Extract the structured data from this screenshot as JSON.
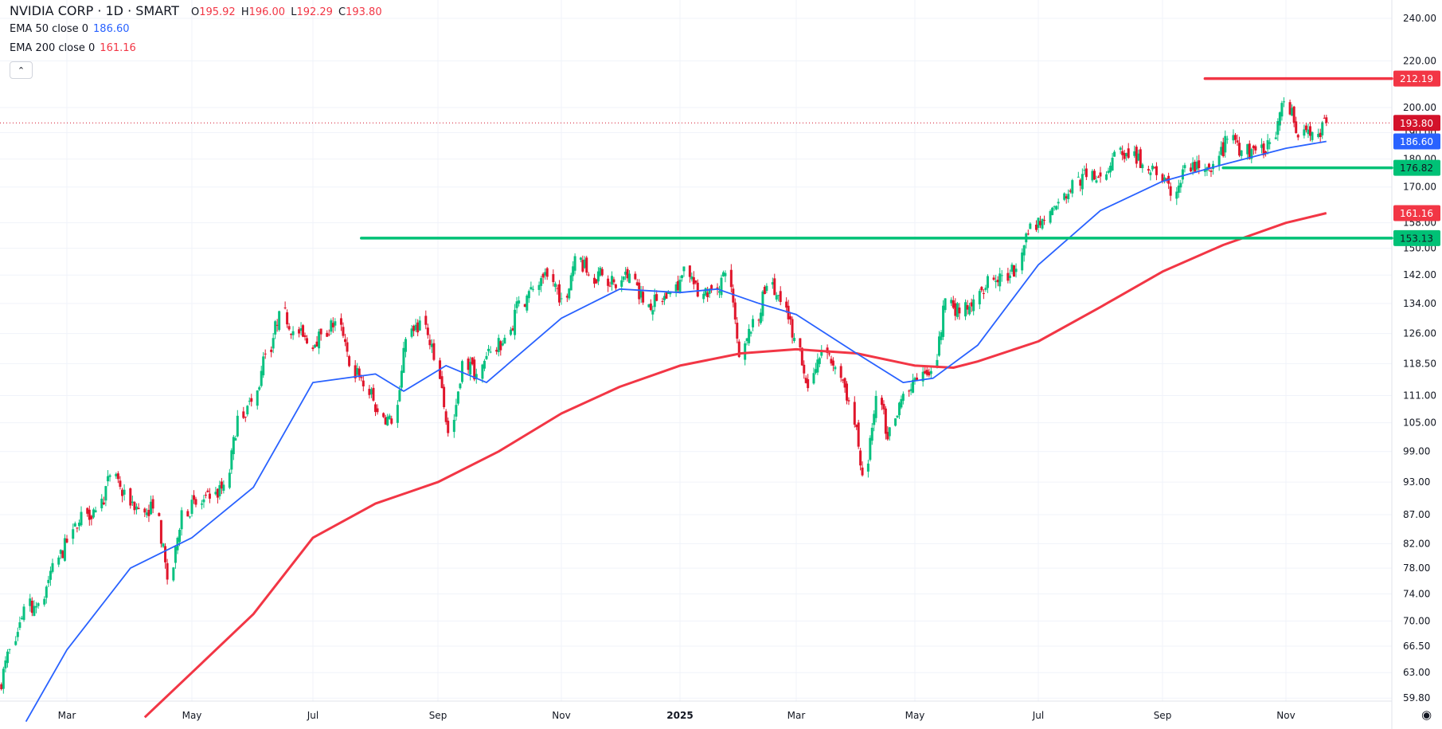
{
  "header": {
    "symbol_title": "NVIDIA CORP · 1D · SMART",
    "ohlc": {
      "o_label": "O",
      "o": "195.92",
      "h_label": "H",
      "h": "196.00",
      "l_label": "L",
      "l": "192.29",
      "c_label": "C",
      "c": "193.80"
    },
    "ema50": {
      "label": "EMA 50 close 0",
      "value": "186.60"
    },
    "ema200": {
      "label": "EMA 200 close 0",
      "value": "161.16"
    },
    "collapse_icon": "chevron-up-icon"
  },
  "colors": {
    "up": "#08c180",
    "down": "#e0152b",
    "ema50": "#2962ff",
    "ema200": "#f23645",
    "support": "#00c176",
    "resistance": "#f23645",
    "last_price": "#d3122a"
  },
  "chart_data": {
    "type": "candlestick",
    "y_scale": "log",
    "ylim": [
      57,
      245
    ],
    "grid": true,
    "y_ticks": [
      "240.00",
      "220.00",
      "200.00",
      "190.00",
      "180.00",
      "170.00",
      "158.00",
      "150.00",
      "142.00",
      "134.00",
      "126.00",
      "118.50",
      "111.00",
      "105.00",
      "99.00",
      "93.00",
      "87.00",
      "82.00",
      "78.00",
      "74.00",
      "70.00",
      "66.50",
      "63.00",
      "59.80"
    ],
    "x_ticks": [
      {
        "label": "Mar",
        "date": "2024-03-01"
      },
      {
        "label": "May",
        "date": "2024-05-01"
      },
      {
        "label": "Jul",
        "date": "2024-07-01"
      },
      {
        "label": "Sep",
        "date": "2024-09-01"
      },
      {
        "label": "Nov",
        "date": "2024-11-01"
      },
      {
        "label": "2025",
        "date": "2025-01-01"
      },
      {
        "label": "Mar",
        "date": "2025-03-01"
      },
      {
        "label": "May",
        "date": "2025-05-01"
      },
      {
        "label": "Jul",
        "date": "2025-07-01"
      },
      {
        "label": "Sep",
        "date": "2025-09-01"
      },
      {
        "label": "Nov",
        "date": "2025-11-01"
      }
    ],
    "weekly_closes": [
      [
        "2024-01-26",
        61.0
      ],
      [
        "2024-02-02",
        66.1
      ],
      [
        "2024-02-09",
        72.1
      ],
      [
        "2024-02-16",
        72.6
      ],
      [
        "2024-02-23",
        78.8
      ],
      [
        "2024-03-01",
        82.2
      ],
      [
        "2024-03-08",
        87.5
      ],
      [
        "2024-03-15",
        87.8
      ],
      [
        "2024-03-22",
        94.3
      ],
      [
        "2024-03-28",
        90.4
      ],
      [
        "2024-04-05",
        88.0
      ],
      [
        "2024-04-12",
        88.1
      ],
      [
        "2024-04-19",
        76.2
      ],
      [
        "2024-04-26",
        87.8
      ],
      [
        "2024-05-03",
        88.8
      ],
      [
        "2024-05-10",
        89.9
      ],
      [
        "2024-05-17",
        92.5
      ],
      [
        "2024-05-24",
        106.5
      ],
      [
        "2024-05-31",
        109.6
      ],
      [
        "2024-06-07",
        120.9
      ],
      [
        "2024-06-14",
        131.9
      ],
      [
        "2024-06-21",
        126.6
      ],
      [
        "2024-06-28",
        123.5
      ],
      [
        "2024-07-05",
        125.8
      ],
      [
        "2024-07-12",
        129.2
      ],
      [
        "2024-07-19",
        117.9
      ],
      [
        "2024-07-26",
        113.1
      ],
      [
        "2024-08-02",
        107.3
      ],
      [
        "2024-08-09",
        104.8
      ],
      [
        "2024-08-16",
        124.6
      ],
      [
        "2024-08-23",
        129.4
      ],
      [
        "2024-08-30",
        119.4
      ],
      [
        "2024-09-06",
        102.8
      ],
      [
        "2024-09-13",
        119.1
      ],
      [
        "2024-09-20",
        116.0
      ],
      [
        "2024-09-27",
        121.4
      ],
      [
        "2024-10-04",
        124.9
      ],
      [
        "2024-10-11",
        134.8
      ],
      [
        "2024-10-18",
        138.0
      ],
      [
        "2024-10-25",
        141.5
      ],
      [
        "2024-11-01",
        135.4
      ],
      [
        "2024-11-08",
        147.6
      ],
      [
        "2024-11-15",
        141.98
      ],
      [
        "2024-11-22",
        141.95
      ],
      [
        "2024-11-29",
        138.25
      ],
      [
        "2024-12-06",
        142.4
      ],
      [
        "2024-12-13",
        134.25
      ],
      [
        "2024-12-20",
        134.7
      ],
      [
        "2024-12-27",
        137.0
      ],
      [
        "2025-01-03",
        144.5
      ],
      [
        "2025-01-10",
        135.9
      ],
      [
        "2025-01-17",
        137.7
      ],
      [
        "2025-01-24",
        142.6
      ],
      [
        "2025-01-31",
        120.1
      ],
      [
        "2025-02-07",
        129.8
      ],
      [
        "2025-02-14",
        138.9
      ],
      [
        "2025-02-21",
        134.4
      ],
      [
        "2025-02-28",
        124.9
      ],
      [
        "2025-03-07",
        112.7
      ],
      [
        "2025-03-14",
        121.7
      ],
      [
        "2025-03-21",
        117.7
      ],
      [
        "2025-03-28",
        109.7
      ],
      [
        "2025-04-04",
        94.3
      ],
      [
        "2025-04-11",
        110.9
      ],
      [
        "2025-04-17",
        101.5
      ],
      [
        "2025-04-25",
        111.4
      ],
      [
        "2025-05-02",
        114.5
      ],
      [
        "2025-05-09",
        116.7
      ],
      [
        "2025-05-16",
        135.4
      ],
      [
        "2025-05-23",
        131.3
      ],
      [
        "2025-05-30",
        135.1
      ],
      [
        "2025-06-06",
        141.7
      ],
      [
        "2025-06-13",
        141.97
      ],
      [
        "2025-06-20",
        143.85
      ],
      [
        "2025-06-27",
        157.75
      ],
      [
        "2025-07-03",
        159.3
      ],
      [
        "2025-07-11",
        164.9
      ],
      [
        "2025-07-18",
        172.4
      ],
      [
        "2025-07-25",
        173.5
      ],
      [
        "2025-08-01",
        173.7
      ],
      [
        "2025-08-08",
        182.7
      ],
      [
        "2025-08-15",
        180.45
      ],
      [
        "2025-08-22",
        177.99
      ],
      [
        "2025-08-29",
        174.18
      ],
      [
        "2025-09-05",
        167.0
      ],
      [
        "2025-09-12",
        177.8
      ],
      [
        "2025-09-19",
        176.7
      ],
      [
        "2025-09-26",
        178.2
      ],
      [
        "2025-10-03",
        187.6
      ],
      [
        "2025-10-10",
        183.2
      ],
      [
        "2025-10-17",
        183.2
      ],
      [
        "2025-10-24",
        186.3
      ],
      [
        "2025-10-31",
        202.5
      ],
      [
        "2025-11-07",
        188.15
      ],
      [
        "2025-11-14",
        190.2
      ],
      [
        "2025-11-21",
        193.8
      ]
    ],
    "series": [
      {
        "name": "EMA 50 close 0",
        "values": [
          [
            "2024-02-10",
            57
          ],
          [
            "2024-03-01",
            66
          ],
          [
            "2024-04-01",
            78
          ],
          [
            "2024-05-01",
            83
          ],
          [
            "2024-06-01",
            92
          ],
          [
            "2024-07-01",
            114
          ],
          [
            "2024-08-01",
            116
          ],
          [
            "2024-08-15",
            112
          ],
          [
            "2024-09-05",
            118
          ],
          [
            "2024-09-25",
            114
          ],
          [
            "2024-11-01",
            130
          ],
          [
            "2024-12-01",
            138
          ],
          [
            "2025-01-01",
            137
          ],
          [
            "2025-01-20",
            138
          ],
          [
            "2025-02-10",
            134
          ],
          [
            "2025-03-01",
            131
          ],
          [
            "2025-04-01",
            121
          ],
          [
            "2025-04-25",
            114
          ],
          [
            "2025-05-10",
            115
          ],
          [
            "2025-06-01",
            123
          ],
          [
            "2025-07-01",
            145
          ],
          [
            "2025-08-01",
            162
          ],
          [
            "2025-09-01",
            172
          ],
          [
            "2025-10-01",
            178
          ],
          [
            "2025-11-01",
            184
          ],
          [
            "2025-11-21",
            186.6
          ]
        ]
      },
      {
        "name": "EMA 200 close 0",
        "values": [
          [
            "2024-04-08",
            57.5
          ],
          [
            "2024-05-01",
            63
          ],
          [
            "2024-06-01",
            71
          ],
          [
            "2024-07-01",
            83
          ],
          [
            "2024-08-01",
            89
          ],
          [
            "2024-09-01",
            93
          ],
          [
            "2024-10-01",
            99
          ],
          [
            "2024-11-01",
            107
          ],
          [
            "2024-12-01",
            113
          ],
          [
            "2025-01-01",
            118
          ],
          [
            "2025-02-01",
            121
          ],
          [
            "2025-03-01",
            122
          ],
          [
            "2025-04-01",
            121
          ],
          [
            "2025-05-01",
            118
          ],
          [
            "2025-05-20",
            117.5
          ],
          [
            "2025-06-01",
            119
          ],
          [
            "2025-07-01",
            124
          ],
          [
            "2025-08-01",
            133
          ],
          [
            "2025-09-01",
            143
          ],
          [
            "2025-10-01",
            151
          ],
          [
            "2025-11-01",
            158
          ],
          [
            "2025-11-21",
            161.16
          ]
        ]
      }
    ],
    "horizontal_lines": [
      {
        "price": 212.19,
        "label": "212.19",
        "kind": "resistance",
        "from": "2025-09-22"
      },
      {
        "price": 176.82,
        "label": "176.82",
        "kind": "support",
        "from": "2025-10-01"
      },
      {
        "price": 153.13,
        "label": "153.13",
        "kind": "support",
        "from": "2024-07-25"
      }
    ],
    "last_price": {
      "price": 193.8,
      "label": "193.80"
    },
    "ema_tags": [
      {
        "price": 186.6,
        "label": "186.60",
        "kind": "ema50"
      },
      {
        "price": 161.16,
        "label": "161.16",
        "kind": "ema200"
      }
    ]
  },
  "footer": {
    "settings_icon": "gear-icon"
  }
}
